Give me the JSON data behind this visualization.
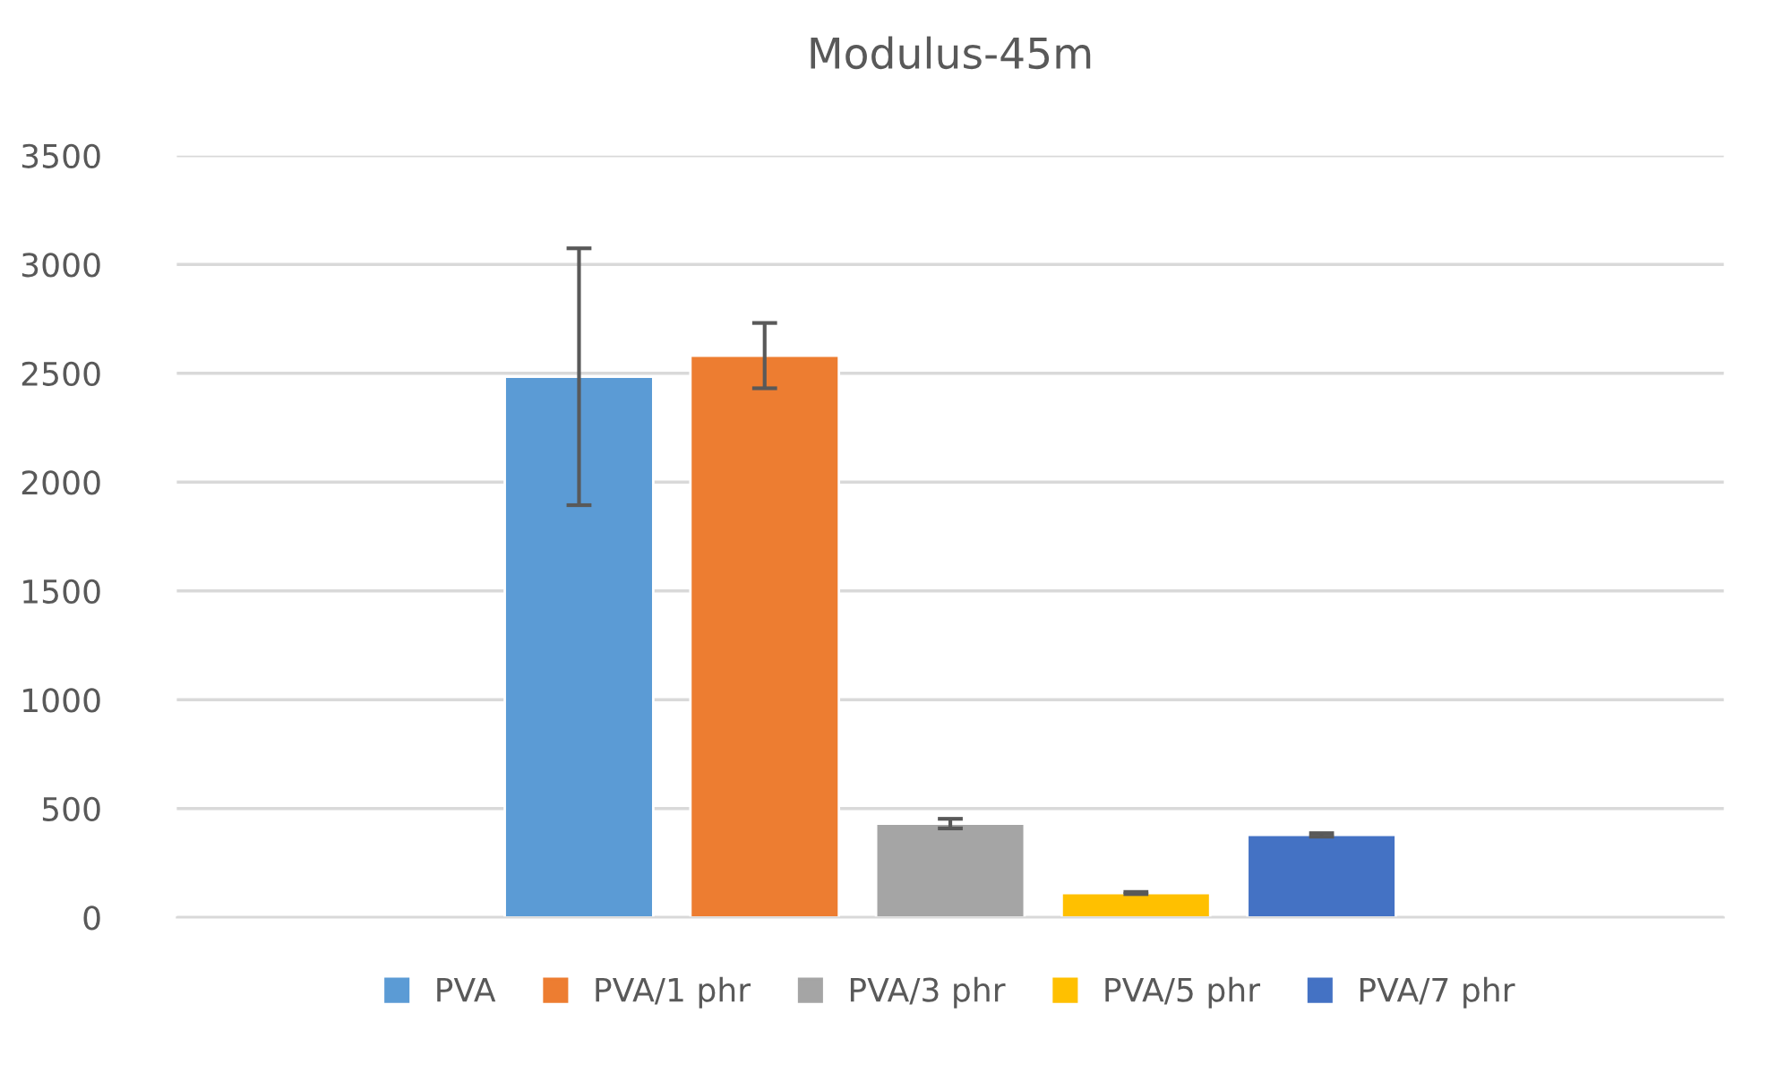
{
  "chart_data": {
    "type": "bar",
    "title": "Modulus-45m",
    "categories": [
      null
    ],
    "series": [
      {
        "name": "PVA",
        "color": "#5b9bd5",
        "values": [
          2484
        ],
        "errors": [
          590
        ]
      },
      {
        "name": "PVA/1 phr",
        "color": "#ed7d31",
        "values": [
          2581
        ],
        "errors": [
          150
        ]
      },
      {
        "name": "PVA/3 phr",
        "color": "#a5a5a5",
        "values": [
          431
        ],
        "errors": [
          22
        ]
      },
      {
        "name": "PVA/5 phr",
        "color": "#ffc000",
        "values": [
          112
        ],
        "errors": [
          5
        ]
      },
      {
        "name": "PVA/7 phr",
        "color": "#4472c4",
        "values": [
          379
        ],
        "errors": [
          8
        ]
      }
    ],
    "ylim": [
      0,
      3500
    ],
    "yticks": [
      0,
      500,
      1000,
      1500,
      2000,
      2500,
      3000,
      3500
    ],
    "grid": "y",
    "legend": "bottom"
  }
}
